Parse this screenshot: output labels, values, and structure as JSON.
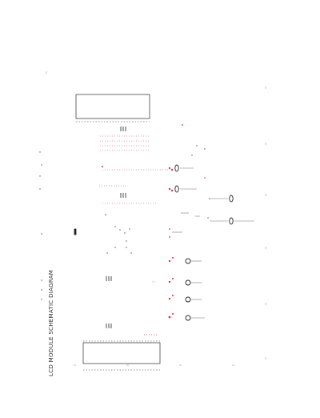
{
  "diagram": {
    "title": "LCD MODULE SCHEMATIC DIAGRAM",
    "notes": [],
    "colors": {
      "line": "#444444",
      "wire": "#777777",
      "signal_red": "#e0304a",
      "text": "#333333"
    }
  }
}
